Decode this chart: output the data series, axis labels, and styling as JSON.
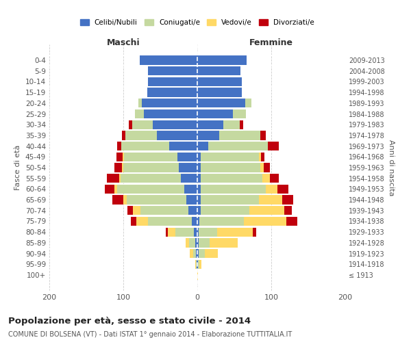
{
  "age_groups": [
    "0-4",
    "5-9",
    "10-14",
    "15-19",
    "20-24",
    "25-29",
    "30-34",
    "35-39",
    "40-44",
    "45-49",
    "50-54",
    "55-59",
    "60-64",
    "65-69",
    "70-74",
    "75-79",
    "80-84",
    "85-89",
    "90-94",
    "95-99",
    "100+"
  ],
  "birth_years": [
    "2009-2013",
    "2004-2008",
    "1999-2003",
    "1994-1998",
    "1989-1993",
    "1984-1988",
    "1979-1983",
    "1974-1978",
    "1969-1973",
    "1964-1968",
    "1959-1963",
    "1954-1958",
    "1949-1953",
    "1944-1948",
    "1939-1943",
    "1934-1938",
    "1929-1933",
    "1924-1928",
    "1919-1923",
    "1914-1918",
    "≤ 1913"
  ],
  "colors": {
    "celibe": "#4472C4",
    "coniugato": "#C5D9A0",
    "vedovo": "#FFD966",
    "divorziato": "#C0000C"
  },
  "males": {
    "celibe": [
      78,
      67,
      67,
      68,
      75,
      72,
      60,
      55,
      38,
      27,
      25,
      22,
      18,
      15,
      12,
      7,
      5,
      3,
      2,
      1,
      0
    ],
    "coniugato": [
      0,
      0,
      0,
      0,
      5,
      12,
      28,
      42,
      65,
      72,
      75,
      82,
      90,
      80,
      65,
      60,
      25,
      8,
      4,
      1,
      0
    ],
    "vedovo": [
      0,
      0,
      0,
      0,
      0,
      0,
      0,
      0,
      0,
      2,
      2,
      2,
      4,
      5,
      10,
      15,
      10,
      5,
      4,
      1,
      0
    ],
    "divorziato": [
      0,
      0,
      0,
      0,
      0,
      0,
      5,
      5,
      5,
      8,
      10,
      16,
      13,
      15,
      7,
      8,
      3,
      0,
      0,
      0,
      0
    ]
  },
  "females": {
    "nubile": [
      67,
      58,
      60,
      60,
      65,
      48,
      35,
      30,
      15,
      5,
      5,
      5,
      5,
      5,
      5,
      3,
      2,
      2,
      2,
      1,
      0
    ],
    "coniugata": [
      0,
      0,
      0,
      0,
      8,
      18,
      22,
      55,
      80,
      78,
      80,
      83,
      88,
      78,
      65,
      60,
      25,
      15,
      8,
      2,
      0
    ],
    "vedova": [
      0,
      0,
      0,
      0,
      0,
      0,
      0,
      0,
      0,
      3,
      5,
      10,
      15,
      32,
      48,
      57,
      48,
      38,
      18,
      3,
      1
    ],
    "divorziata": [
      0,
      0,
      0,
      0,
      0,
      0,
      5,
      8,
      15,
      5,
      8,
      12,
      15,
      15,
      10,
      15,
      5,
      0,
      0,
      0,
      0
    ]
  },
  "title": "Popolazione per età, sesso e stato civile - 2014",
  "subtitle": "COMUNE DI BOLSENA (VT) - Dati ISTAT 1° gennaio 2014 - Elaborazione TUTTITALIA.IT",
  "xlabel_left": "Maschi",
  "xlabel_right": "Femmine",
  "ylabel_left": "Fasce di età",
  "ylabel_right": "Anni di nascita",
  "xlim": 200,
  "bg_color": "#ffffff",
  "grid_color": "#cccccc",
  "legend_labels": [
    "Celibi/Nubili",
    "Coniugati/e",
    "Vedovi/e",
    "Divorziati/e"
  ]
}
